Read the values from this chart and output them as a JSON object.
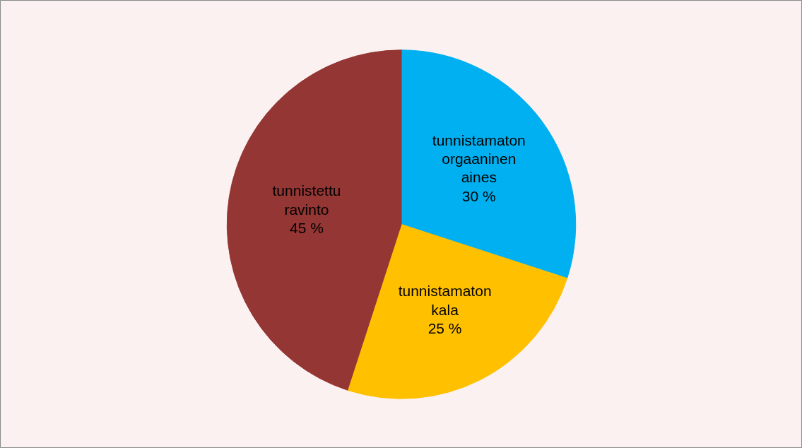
{
  "chart_data": {
    "type": "pie",
    "categories": [
      "tunnistamaton orgaaninen aines",
      "tunnistamaton kala",
      "tunnistettu ravinto"
    ],
    "values": [
      30,
      25,
      45
    ],
    "colors": [
      "#00b0f0",
      "#ffc000",
      "#943634"
    ],
    "value_labels": [
      "30 %",
      "25 %",
      "45 %"
    ]
  }
}
